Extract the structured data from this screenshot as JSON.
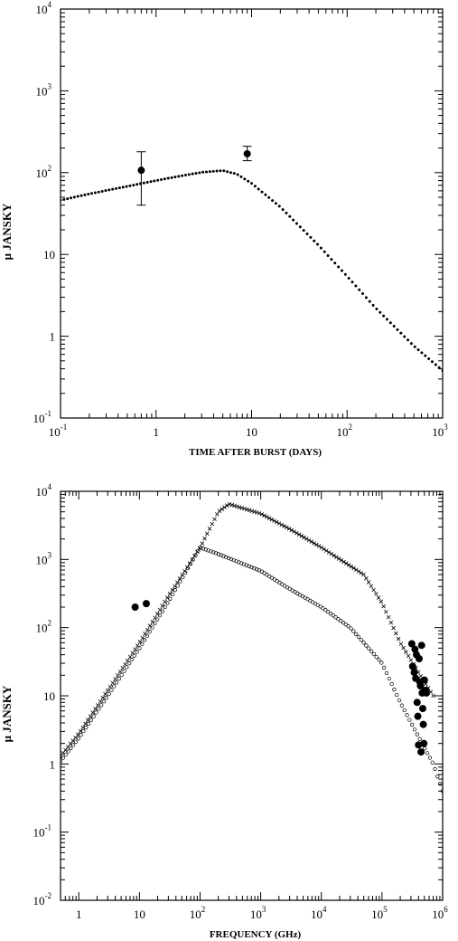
{
  "chart_data": [
    {
      "type": "scatter",
      "xlabel": "TIME AFTER BURST (DAYS)",
      "ylabel": "μ JANSKY",
      "xscale": "log",
      "yscale": "log",
      "xlim": [
        0.1,
        1000
      ],
      "ylim": [
        0.1,
        10000
      ],
      "grid": false,
      "x_ticks": [
        {
          "base": "10",
          "exp": "-1",
          "value": 0.1
        },
        {
          "base": "1",
          "exp": "",
          "value": 1
        },
        {
          "base": "10",
          "exp": "",
          "value": 10
        },
        {
          "base": "10",
          "exp": "2",
          "value": 100
        },
        {
          "base": "10",
          "exp": "3",
          "value": 1000
        }
      ],
      "y_ticks": [
        {
          "base": "10",
          "exp": "-1",
          "value": 0.1
        },
        {
          "base": "1",
          "exp": "",
          "value": 1
        },
        {
          "base": "10",
          "exp": "",
          "value": 10
        },
        {
          "base": "10",
          "exp": "2",
          "value": 100
        },
        {
          "base": "10",
          "exp": "3",
          "value": 1000
        },
        {
          "base": "10",
          "exp": "4",
          "value": 10000
        }
      ],
      "series": [
        {
          "style": "dotted-model",
          "x": [
            0.1,
            0.2,
            0.5,
            1,
            2,
            3,
            5,
            7,
            10,
            20,
            50,
            100,
            200,
            500,
            1000
          ],
          "y": [
            46,
            55,
            68,
            80,
            93,
            101,
            106,
            96,
            74,
            38,
            13,
            5.4,
            2.2,
            0.76,
            0.38
          ]
        },
        {
          "style": "points-with-errors",
          "x": [
            0.7,
            9
          ],
          "y": [
            107,
            170
          ],
          "yerr_low": [
            40,
            140
          ],
          "yerr_high": [
            180,
            210
          ]
        }
      ]
    },
    {
      "type": "scatter",
      "xlabel": "FREQUENCY (GHz)",
      "ylabel": "μ JANSKY",
      "xscale": "log",
      "yscale": "log",
      "xlim": [
        0.5,
        1000000
      ],
      "ylim": [
        0.01,
        10000
      ],
      "grid": false,
      "x_ticks": [
        {
          "base": "1",
          "exp": "",
          "value": 1
        },
        {
          "base": "10",
          "exp": "",
          "value": 10
        },
        {
          "base": "10",
          "exp": "2",
          "value": 100
        },
        {
          "base": "10",
          "exp": "3",
          "value": 1000
        },
        {
          "base": "10",
          "exp": "4",
          "value": 10000
        },
        {
          "base": "10",
          "exp": "5",
          "value": 100000
        },
        {
          "base": "10",
          "exp": "6",
          "value": 1000000
        }
      ],
      "y_ticks": [
        {
          "base": "10",
          "exp": "-2",
          "value": 0.01
        },
        {
          "base": "10",
          "exp": "-1",
          "value": 0.1
        },
        {
          "base": "1",
          "exp": "",
          "value": 1
        },
        {
          "base": "10",
          "exp": "",
          "value": 10
        },
        {
          "base": "10",
          "exp": "2",
          "value": 100
        },
        {
          "base": "10",
          "exp": "3",
          "value": 1000
        },
        {
          "base": "10",
          "exp": "4",
          "value": 10000
        }
      ],
      "series": [
        {
          "style": "cross-model",
          "x": [
            0.5,
            1,
            3,
            10,
            30,
            100,
            200,
            300,
            1000,
            3000,
            10000,
            50000,
            100000,
            200000,
            400000,
            700000
          ],
          "y": [
            1.3,
            2.8,
            12,
            60,
            290,
            1500,
            5000,
            6500,
            4700,
            2800,
            1500,
            600,
            230,
            60,
            22,
            10
          ]
        },
        {
          "style": "circle-model",
          "x": [
            0.5,
            1,
            3,
            10,
            30,
            100,
            200,
            1000,
            3000,
            10000,
            30000,
            100000,
            200000,
            400000,
            700000,
            1000000
          ],
          "y": [
            1.1,
            2.4,
            10,
            50,
            240,
            1500,
            1200,
            680,
            370,
            200,
            100,
            30,
            8,
            2.5,
            1,
            0.4
          ]
        },
        {
          "style": "points-with-errors",
          "x": [
            8.5,
            13,
            310000,
            320000,
            340000,
            350000,
            360000,
            370000,
            380000,
            390000,
            400000,
            410000,
            420000,
            430000,
            440000,
            450000,
            460000,
            470000,
            480000,
            490000,
            500000,
            520000,
            540000
          ],
          "y": [
            200,
            225,
            58,
            27,
            22,
            48,
            18,
            40,
            8,
            5,
            1.9,
            35,
            16,
            14,
            1.5,
            55,
            11,
            6.5,
            3.8,
            2,
            17,
            12,
            11
          ]
        }
      ]
    }
  ]
}
